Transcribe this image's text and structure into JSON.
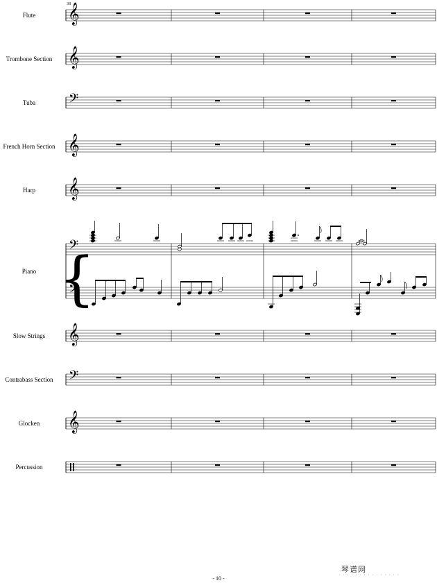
{
  "measure_number": "38",
  "page_number": "- 10 -",
  "watermark": "琴谱网",
  "instruments": [
    {
      "name": "Flute",
      "clef": "treble",
      "rests": true
    },
    {
      "name": "Trombone Section",
      "clef": "treble",
      "rests": true
    },
    {
      "name": "Tuba",
      "clef": "bass",
      "rests": true
    },
    {
      "name": "French Horn Section",
      "clef": "treble",
      "rests": true
    },
    {
      "name": "Harp",
      "clef": "treble",
      "rests": true
    },
    {
      "name": "Piano",
      "clef": "bass",
      "rests": false,
      "grand": true
    },
    {
      "name": "Slow Strings",
      "clef": "treble",
      "rests": true
    },
    {
      "name": "Contrabass Section",
      "clef": "bass",
      "rests": true
    },
    {
      "name": "Glocken",
      "clef": "treble",
      "rests": true
    },
    {
      "name": "Percussion",
      "clef": "percussion",
      "rests": true
    }
  ]
}
